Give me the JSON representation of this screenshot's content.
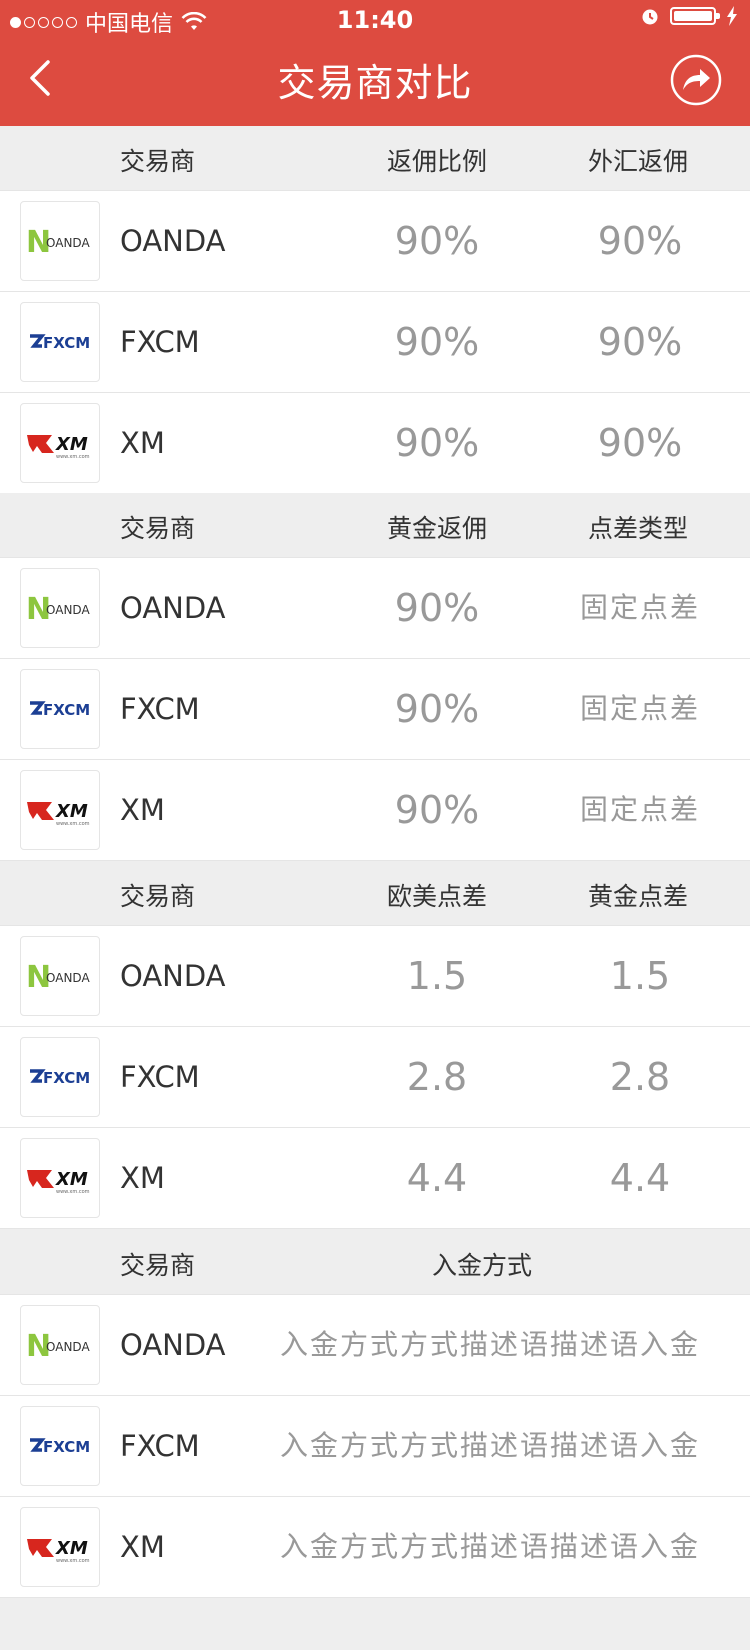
{
  "status_bar": {
    "carrier": "中国电信",
    "time": "11:40"
  },
  "header": {
    "title": "交易商对比"
  },
  "colors": {
    "header_bg": "#dd4b40",
    "oanda_green": "#8dc63f",
    "fxcm_blue": "#1c3f94",
    "xm_red": "#d7261e"
  },
  "sections": [
    {
      "headers": [
        "交易商",
        "返佣比例",
        "外汇返佣"
      ],
      "rows": [
        {
          "broker": "OANDA",
          "v1": "90%",
          "v2": "90%"
        },
        {
          "broker": "FXCM",
          "v1": "90%",
          "v2": "90%"
        },
        {
          "broker": "XM",
          "v1": "90%",
          "v2": "90%"
        }
      ]
    },
    {
      "headers": [
        "交易商",
        "黄金返佣",
        "点差类型"
      ],
      "rows": [
        {
          "broker": "OANDA",
          "v1": "90%",
          "v2": "固定点差"
        },
        {
          "broker": "FXCM",
          "v1": "90%",
          "v2": "固定点差"
        },
        {
          "broker": "XM",
          "v1": "90%",
          "v2": "固定点差"
        }
      ]
    },
    {
      "headers": [
        "交易商",
        "欧美点差",
        "黄金点差"
      ],
      "rows": [
        {
          "broker": "OANDA",
          "v1": "1.5",
          "v2": "1.5"
        },
        {
          "broker": "FXCM",
          "v1": "2.8",
          "v2": "2.8"
        },
        {
          "broker": "XM",
          "v1": "4.4",
          "v2": "4.4"
        }
      ]
    },
    {
      "headers": [
        "交易商",
        "入金方式"
      ],
      "rows": [
        {
          "broker": "OANDA",
          "desc": "入金方式方式描述语描述语入金"
        },
        {
          "broker": "FXCM",
          "desc": "入金方式方式描述语描述语入金"
        },
        {
          "broker": "XM",
          "desc": "入金方式方式描述语描述语入金"
        }
      ]
    }
  ],
  "logos": {
    "oanda": {
      "letter": "N",
      "text": "OANDA"
    },
    "fxcm": {
      "text": "FXCM"
    },
    "xm": {
      "text": "XM",
      "sub": "www.xm.com"
    }
  }
}
